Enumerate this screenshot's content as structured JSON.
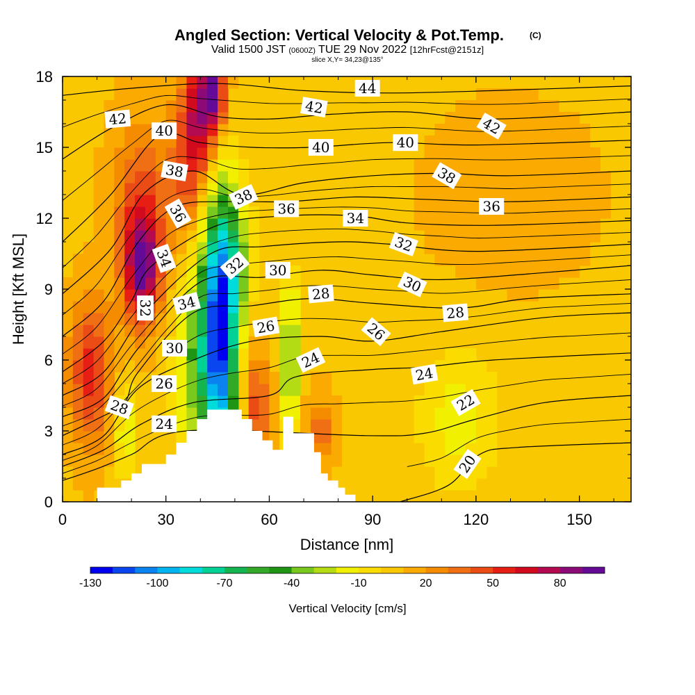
{
  "chart_data": {
    "type": "heatmap",
    "title": {
      "main": "Angled Section: Vertical Velocity & Pot.Temp.",
      "tag": "(C)"
    },
    "subtitle": {
      "valid": "Valid 1500 JST",
      "utc": "(0600Z)",
      "date": "TUE 29 Nov 2022",
      "fcst": "[12hrFcst@2151z]"
    },
    "slice_text": "slice X,Y= 34,23@135°",
    "xlabel": "Distance [nm]",
    "ylabel": "Height [Kft MSL]",
    "xlim": [
      0,
      165
    ],
    "ylim": [
      0,
      18
    ],
    "x_ticks": [
      "0",
      "30",
      "60",
      "90",
      "120",
      "150"
    ],
    "y_ticks": [
      "0",
      "3",
      "6",
      "9",
      "12",
      "15",
      "18"
    ],
    "colorbar": {
      "title": "Vertical Velocity [cm/s]",
      "tick_labels": [
        "-130",
        "-100",
        "-70",
        "-40",
        "-10",
        "20",
        "50",
        "80"
      ],
      "levels": [
        -130,
        -120,
        -110,
        -100,
        -90,
        -80,
        -70,
        -60,
        -50,
        -40,
        -30,
        -20,
        -10,
        0,
        10,
        20,
        30,
        40,
        50,
        60,
        70,
        80,
        90
      ],
      "colors": [
        "#0000f0",
        "#0a46f0",
        "#0a82f0",
        "#00b4f0",
        "#00dcdc",
        "#00d296",
        "#14b450",
        "#32aa28",
        "#1e9614",
        "#78c81e",
        "#b4dc14",
        "#f0f000",
        "#fadc00",
        "#fac800",
        "#faaa00",
        "#f58c00",
        "#f06e14",
        "#eb4b14",
        "#e61e14",
        "#d20a1e",
        "#b40a50",
        "#8c0a78",
        "#640a96"
      ]
    },
    "terrain_profile": {
      "note": "",
      "x": [
        0,
        10,
        10,
        17,
        17,
        20,
        20,
        23,
        23,
        30,
        30,
        33,
        33,
        36,
        36,
        39,
        39,
        42,
        42,
        52,
        52,
        55,
        55,
        58,
        58,
        61,
        61,
        64,
        64,
        67,
        67,
        73,
        73,
        75,
        75,
        77,
        77,
        80,
        80,
        82,
        82,
        85,
        85,
        165
      ],
      "y": [
        0,
        0,
        0.6,
        0.6,
        0.9,
        0.9,
        1.2,
        1.2,
        1.6,
        1.6,
        2.0,
        2.0,
        2.5,
        2.5,
        3.0,
        3.0,
        3.5,
        3.5,
        3.9,
        3.9,
        3.5,
        3.5,
        3.0,
        3.0,
        2.6,
        2.6,
        2.2,
        2.2,
        3.6,
        3.6,
        2.9,
        2.9,
        2.1,
        2.1,
        1.2,
        1.2,
        0.9,
        0.9,
        0.6,
        0.6,
        0.3,
        0.3,
        0,
        0
      ]
    },
    "velocity_features": [
      {
        "x": 46,
        "y": 7.0,
        "value": -100,
        "sx": 5,
        "sy": 5.5
      },
      {
        "x": 40,
        "y": 6.0,
        "value": -40,
        "sx": 7,
        "sy": 4.5
      },
      {
        "x": 49,
        "y": 10.5,
        "value": -30,
        "sx": 6,
        "sy": 3.0
      },
      {
        "x": 66,
        "y": 6.0,
        "value": -40,
        "sx": 2.5,
        "sy": 3.5
      },
      {
        "x": 18,
        "y": 3.0,
        "value": -20,
        "sx": 3,
        "sy": 2.0
      },
      {
        "x": 23,
        "y": 9.8,
        "value": 80,
        "sx": 5,
        "sy": 2.2
      },
      {
        "x": 23,
        "y": 12.5,
        "value": 45,
        "sx": 8,
        "sy": 3.5
      },
      {
        "x": 40,
        "y": 16.5,
        "value": 70,
        "sx": 5,
        "sy": 2.5
      },
      {
        "x": 44,
        "y": 17.5,
        "value": 80,
        "sx": 3,
        "sy": 1.5
      },
      {
        "x": 36,
        "y": 14.0,
        "value": 40,
        "sx": 5,
        "sy": 3.0
      },
      {
        "x": 8,
        "y": 5.5,
        "value": 55,
        "sx": 6,
        "sy": 3.0
      },
      {
        "x": 56,
        "y": 4.0,
        "value": 45,
        "sx": 4,
        "sy": 2.5
      },
      {
        "x": 75,
        "y": 3.0,
        "value": 35,
        "sx": 4,
        "sy": 1.5
      },
      {
        "x": 115,
        "y": 3.5,
        "value": -15,
        "sx": 12,
        "sy": 3.0
      },
      {
        "x": 130,
        "y": 13.0,
        "value": 15,
        "sx": 25,
        "sy": 4.0
      }
    ],
    "velocity_background": 8,
    "theta_contours": [
      {
        "level": 20,
        "pts": [
          [
            98,
            0.0
          ],
          [
            112,
            0.7
          ],
          [
            121,
            2.0
          ],
          [
            132,
            2.3
          ],
          [
            165,
            2.5
          ]
        ]
      },
      {
        "level": 22,
        "pts": [
          [
            0,
            0.9
          ],
          [
            10,
            1.4
          ],
          [
            20,
            2.0
          ],
          [
            36,
            3.0
          ],
          [
            88,
            2.8
          ],
          [
            105,
            2.9
          ],
          [
            120,
            3.5
          ],
          [
            140,
            4.2
          ],
          [
            165,
            4.5
          ]
        ]
      },
      {
        "level": 24,
        "pts": [
          [
            0,
            1.5
          ],
          [
            12,
            2.2
          ],
          [
            23,
            3.3
          ],
          [
            38,
            4.2
          ],
          [
            60,
            4.5
          ],
          [
            68,
            5.3
          ],
          [
            90,
            5.6
          ],
          [
            105,
            5.7
          ],
          [
            125,
            6.0
          ],
          [
            165,
            6.3
          ]
        ]
      },
      {
        "level": 26,
        "pts": [
          [
            0,
            2.0
          ],
          [
            12,
            2.8
          ],
          [
            22,
            4.8
          ],
          [
            38,
            6.0
          ],
          [
            55,
            6.8
          ],
          [
            75,
            7.0
          ],
          [
            90,
            6.8
          ],
          [
            110,
            7.2
          ],
          [
            140,
            7.8
          ],
          [
            165,
            8.0
          ]
        ]
      },
      {
        "level": 28,
        "pts": [
          [
            0,
            2.8
          ],
          [
            10,
            3.5
          ],
          [
            18,
            4.2
          ],
          [
            22,
            5.5
          ],
          [
            38,
            8.0
          ],
          [
            55,
            8.3
          ],
          [
            72,
            8.6
          ],
          [
            90,
            8.4
          ],
          [
            115,
            8.2
          ],
          [
            135,
            8.6
          ],
          [
            165,
            8.8
          ]
        ]
      },
      {
        "level": 30,
        "pts": [
          [
            0,
            3.6
          ],
          [
            12,
            4.4
          ],
          [
            22,
            6.5
          ],
          [
            40,
            9.3
          ],
          [
            58,
            9.5
          ],
          [
            75,
            9.8
          ],
          [
            90,
            9.6
          ],
          [
            110,
            9.4
          ],
          [
            140,
            9.7
          ],
          [
            165,
            10.0
          ]
        ]
      },
      {
        "level": 32,
        "pts": [
          [
            0,
            4.5
          ],
          [
            12,
            5.5
          ],
          [
            24,
            8.0
          ],
          [
            43,
            10.5
          ],
          [
            58,
            10.8
          ],
          [
            80,
            11.0
          ],
          [
            95,
            10.9
          ],
          [
            120,
            10.6
          ],
          [
            165,
            10.9
          ]
        ]
      },
      {
        "level": 34,
        "pts": [
          [
            0,
            5.5
          ],
          [
            12,
            6.8
          ],
          [
            20,
            8.5
          ],
          [
            26,
            10.0
          ],
          [
            45,
            11.7
          ],
          [
            65,
            12.1
          ],
          [
            85,
            12.1
          ],
          [
            100,
            11.8
          ],
          [
            125,
            11.7
          ],
          [
            165,
            11.9
          ]
        ]
      },
      {
        "level": 36,
        "pts": [
          [
            0,
            7.0
          ],
          [
            12,
            8.5
          ],
          [
            22,
            11.0
          ],
          [
            33,
            12.5
          ],
          [
            48,
            12.7
          ],
          [
            65,
            12.7
          ],
          [
            85,
            12.9
          ],
          [
            105,
            12.8
          ],
          [
            130,
            12.7
          ],
          [
            165,
            12.9
          ]
        ]
      },
      {
        "level": 38,
        "pts": [
          [
            0,
            8.8
          ],
          [
            14,
            10.7
          ],
          [
            24,
            13.1
          ],
          [
            38,
            14.0
          ],
          [
            52,
            13.0
          ],
          [
            70,
            13.5
          ],
          [
            90,
            13.8
          ],
          [
            110,
            13.9
          ],
          [
            130,
            13.8
          ],
          [
            165,
            14.0
          ]
        ]
      },
      {
        "level": 40,
        "pts": [
          [
            0,
            11.0
          ],
          [
            14,
            13.0
          ],
          [
            28,
            15.5
          ],
          [
            40,
            15.2
          ],
          [
            55,
            15.0
          ],
          [
            72,
            15.0
          ],
          [
            95,
            15.2
          ],
          [
            120,
            15.1
          ],
          [
            165,
            15.3
          ]
        ]
      },
      {
        "level": 42,
        "pts": [
          [
            0,
            14.5
          ],
          [
            14,
            15.8
          ],
          [
            30,
            16.8
          ],
          [
            45,
            16.3
          ],
          [
            60,
            16.2
          ],
          [
            78,
            16.4
          ],
          [
            100,
            16.5
          ],
          [
            125,
            16.2
          ],
          [
            165,
            16.5
          ]
        ]
      },
      {
        "level": 44,
        "pts": [
          [
            0,
            17.2
          ],
          [
            20,
            17.5
          ],
          [
            45,
            17.7
          ],
          [
            70,
            17.4
          ],
          [
            95,
            17.3
          ],
          [
            125,
            17.4
          ],
          [
            165,
            17.6
          ]
        ]
      }
    ],
    "contour_labels": [
      {
        "text": "42",
        "x": 16,
        "y": 16.2,
        "rot": -5
      },
      {
        "text": "40",
        "x": 29.5,
        "y": 15.7,
        "rot": 0
      },
      {
        "text": "38",
        "x": 32.5,
        "y": 14.0,
        "rot": 10
      },
      {
        "text": "36",
        "x": 33.5,
        "y": 12.2,
        "rot": 60
      },
      {
        "text": "34",
        "x": 29.5,
        "y": 10.3,
        "rot": 70
      },
      {
        "text": "32",
        "x": 24,
        "y": 8.2,
        "rot": 90
      },
      {
        "text": "34",
        "x": 36,
        "y": 8.4,
        "rot": -15
      },
      {
        "text": "30",
        "x": 32.5,
        "y": 6.5,
        "rot": 0
      },
      {
        "text": "26",
        "x": 29.5,
        "y": 5.0,
        "rot": 0
      },
      {
        "text": "28",
        "x": 16.5,
        "y": 4.0,
        "rot": 20
      },
      {
        "text": "24",
        "x": 29.5,
        "y": 3.3,
        "rot": 0
      },
      {
        "text": "38",
        "x": 52.5,
        "y": 12.9,
        "rot": -25
      },
      {
        "text": "36",
        "x": 65,
        "y": 12.4,
        "rot": 0
      },
      {
        "text": "32",
        "x": 50,
        "y": 10.0,
        "rot": -40
      },
      {
        "text": "30",
        "x": 62.5,
        "y": 9.8,
        "rot": 0
      },
      {
        "text": "28",
        "x": 75,
        "y": 8.8,
        "rot": -5
      },
      {
        "text": "26",
        "x": 59,
        "y": 7.4,
        "rot": -10
      },
      {
        "text": "24",
        "x": 72,
        "y": 6.0,
        "rot": -25
      },
      {
        "text": "42",
        "x": 73,
        "y": 16.7,
        "rot": 10
      },
      {
        "text": "44",
        "x": 88.5,
        "y": 17.5,
        "rot": 0
      },
      {
        "text": "40",
        "x": 75,
        "y": 15.0,
        "rot": 0
      },
      {
        "text": "40",
        "x": 99.5,
        "y": 15.2,
        "rot": 0
      },
      {
        "text": "34",
        "x": 85,
        "y": 12.0,
        "rot": 0
      },
      {
        "text": "32",
        "x": 99,
        "y": 10.9,
        "rot": 20
      },
      {
        "text": "30",
        "x": 101.5,
        "y": 9.2,
        "rot": 25
      },
      {
        "text": "28",
        "x": 114,
        "y": 8.0,
        "rot": -5
      },
      {
        "text": "26",
        "x": 91,
        "y": 7.2,
        "rot": 40
      },
      {
        "text": "24",
        "x": 105,
        "y": 5.4,
        "rot": -10
      },
      {
        "text": "22",
        "x": 117,
        "y": 4.2,
        "rot": -30
      },
      {
        "text": "20",
        "x": 117.5,
        "y": 1.6,
        "rot": -55
      },
      {
        "text": "42",
        "x": 124.5,
        "y": 15.9,
        "rot": 30
      },
      {
        "text": "38",
        "x": 111.5,
        "y": 13.8,
        "rot": 30
      },
      {
        "text": "36",
        "x": 124.5,
        "y": 12.5,
        "rot": 0
      }
    ]
  }
}
